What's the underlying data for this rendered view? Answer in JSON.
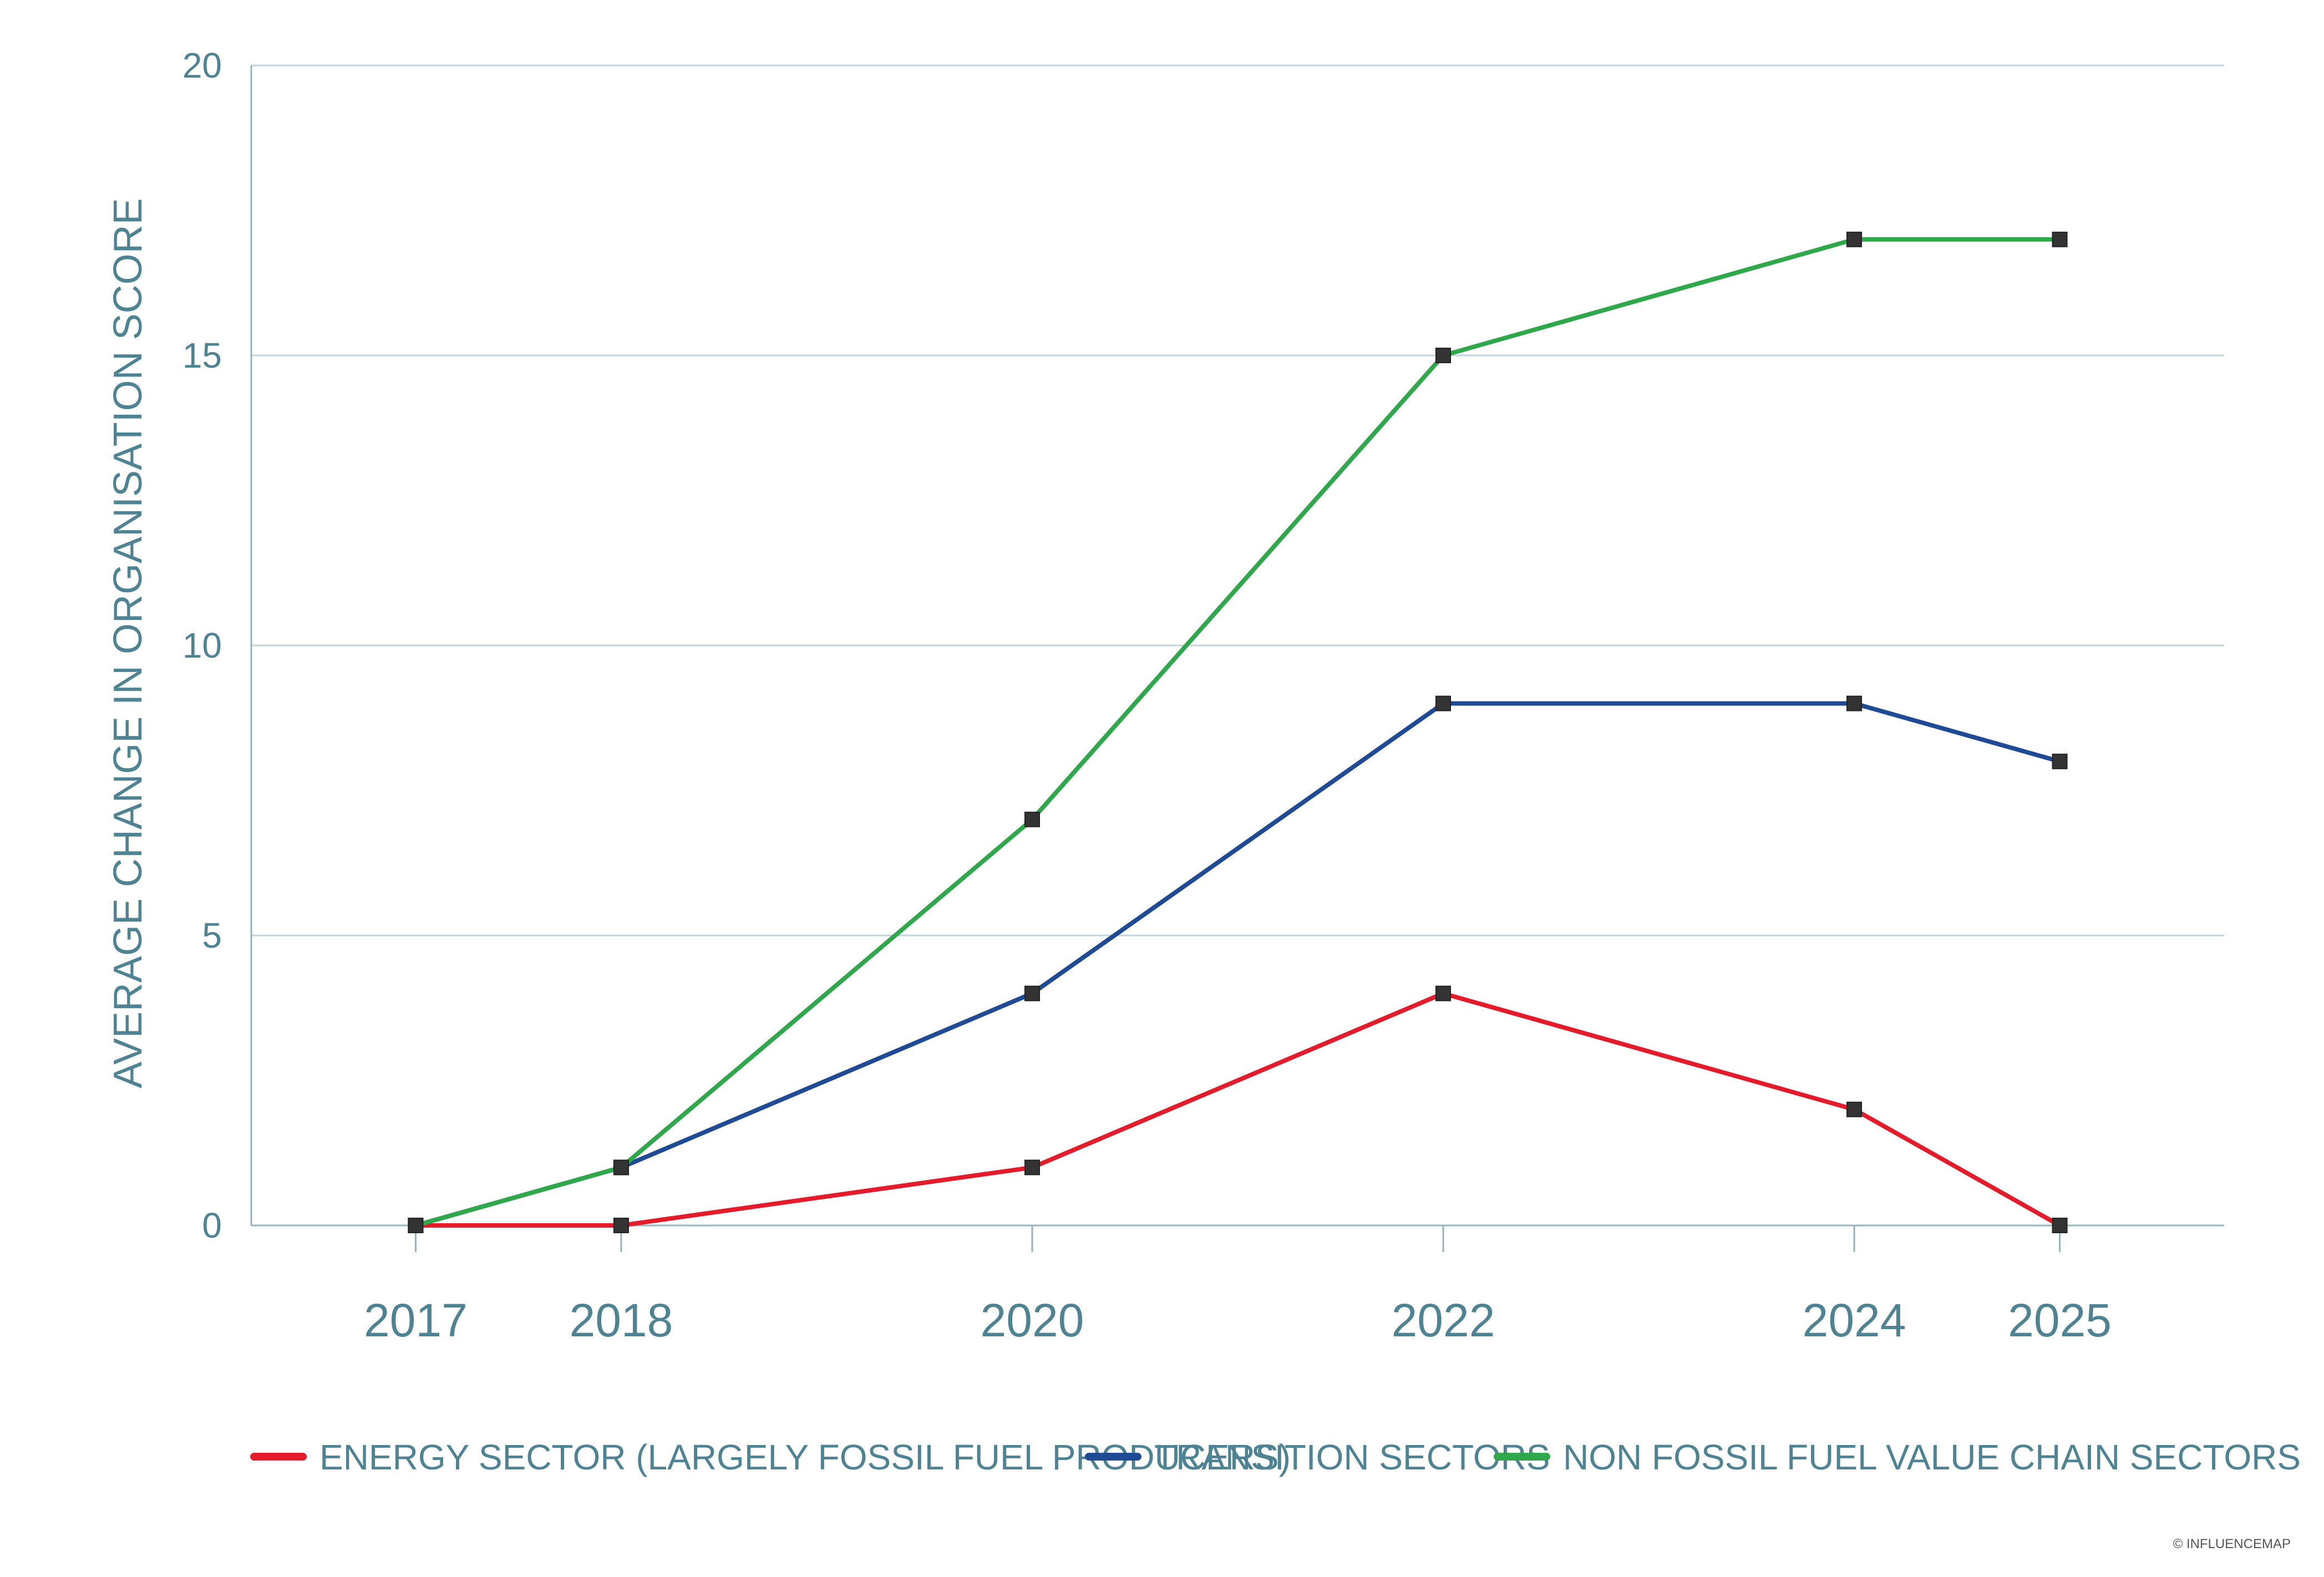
{
  "chart_data": {
    "type": "line",
    "title": "",
    "xlabel": "",
    "ylabel": "AVERAGE CHANGE IN ORGANISATION SCORE",
    "x": [
      2017,
      2018,
      2020,
      2022,
      2024,
      2025
    ],
    "x_tick_labels": [
      "2017",
      "2018",
      "2020",
      "2022",
      "2024",
      "2025"
    ],
    "xlim": [
      2016.2,
      2025.8
    ],
    "ylim": [
      0,
      20
    ],
    "y_ticks": [
      0,
      5,
      10,
      15,
      20
    ],
    "y_tick_labels": [
      "0",
      "5",
      "10",
      "15",
      "20"
    ],
    "grid": "horizontal",
    "legend_position": "bottom",
    "series": [
      {
        "name": "ENERGY SECTOR (LARGELY FOSSIL FUEL PRODUCERS)",
        "color": "#e31b2b",
        "values": [
          0,
          0,
          1,
          4,
          2,
          0
        ]
      },
      {
        "name": "TRANSITION SECTORS",
        "color": "#1f4a96",
        "values": [
          0,
          1,
          4,
          9,
          9,
          8
        ]
      },
      {
        "name": "NON FOSSIL FUEL VALUE CHAIN SECTORS",
        "color": "#2ea84a",
        "values": [
          0,
          1,
          7,
          15,
          17,
          17
        ]
      }
    ],
    "marker_color": "#333333"
  },
  "copyright": "© INFLUENCEMAP",
  "colors": {
    "axis_text": "#4d8392",
    "grid": "#c2d6dc",
    "axis": "#93b3bd"
  }
}
